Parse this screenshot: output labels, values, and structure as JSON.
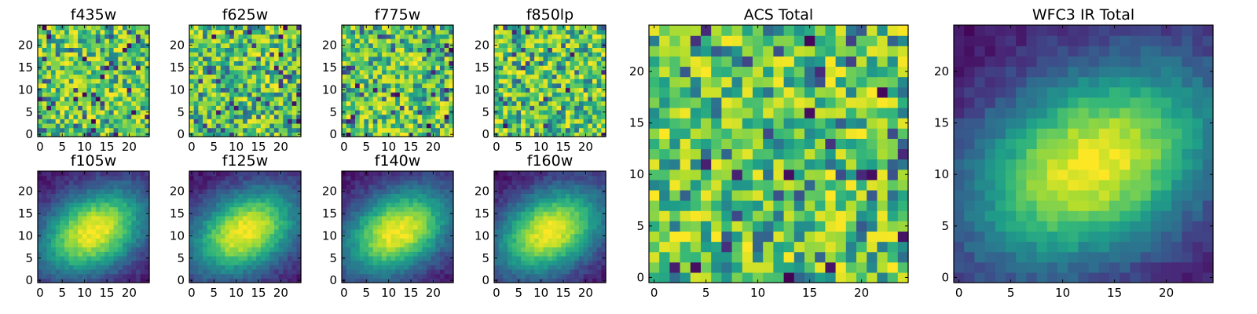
{
  "chart_data": [
    {
      "type": "heatmap",
      "title": "f435w",
      "x_ticks": [
        "0",
        "5",
        "10",
        "15",
        "20"
      ],
      "y_ticks": [
        "0",
        "5",
        "10",
        "15",
        "20"
      ],
      "grid_size": 25,
      "xlim": [
        0,
        24
      ],
      "ylim": [
        0,
        24
      ],
      "structure": "noise",
      "seed": 11
    },
    {
      "type": "heatmap",
      "title": "f625w",
      "x_ticks": [
        "0",
        "5",
        "10",
        "15",
        "20"
      ],
      "y_ticks": [
        "0",
        "5",
        "10",
        "15",
        "20"
      ],
      "grid_size": 25,
      "xlim": [
        0,
        24
      ],
      "ylim": [
        0,
        24
      ],
      "structure": "noise",
      "seed": 23
    },
    {
      "type": "heatmap",
      "title": "f775w",
      "x_ticks": [
        "0",
        "5",
        "10",
        "15",
        "20"
      ],
      "y_ticks": [
        "0",
        "5",
        "10",
        "15",
        "20"
      ],
      "grid_size": 25,
      "xlim": [
        0,
        24
      ],
      "ylim": [
        0,
        24
      ],
      "structure": "noise",
      "seed": 37
    },
    {
      "type": "heatmap",
      "title": "f850lp",
      "x_ticks": [
        "0",
        "5",
        "10",
        "15",
        "20"
      ],
      "y_ticks": [
        "0",
        "5",
        "10",
        "15",
        "20"
      ],
      "grid_size": 25,
      "xlim": [
        0,
        24
      ],
      "ylim": [
        0,
        24
      ],
      "structure": "noise",
      "seed": 41
    },
    {
      "type": "heatmap",
      "title": "f105w",
      "x_ticks": [
        "0",
        "5",
        "10",
        "15",
        "20"
      ],
      "y_ticks": [
        "0",
        "5",
        "10",
        "15",
        "20"
      ],
      "grid_size": 25,
      "xlim": [
        0,
        24
      ],
      "ylim": [
        0,
        24
      ],
      "structure": "blob",
      "blob_center": [
        12,
        11
      ],
      "seed": 53
    },
    {
      "type": "heatmap",
      "title": "f125w",
      "x_ticks": [
        "0",
        "5",
        "10",
        "15",
        "20"
      ],
      "y_ticks": [
        "0",
        "5",
        "10",
        "15",
        "20"
      ],
      "grid_size": 25,
      "xlim": [
        0,
        24
      ],
      "ylim": [
        0,
        24
      ],
      "structure": "blob",
      "blob_center": [
        12,
        11
      ],
      "seed": 61
    },
    {
      "type": "heatmap",
      "title": "f140w",
      "x_ticks": [
        "0",
        "5",
        "10",
        "15",
        "20"
      ],
      "y_ticks": [
        "0",
        "5",
        "10",
        "15",
        "20"
      ],
      "grid_size": 25,
      "xlim": [
        0,
        24
      ],
      "ylim": [
        0,
        24
      ],
      "structure": "blob",
      "blob_center": [
        12,
        11
      ],
      "seed": 73
    },
    {
      "type": "heatmap",
      "title": "f160w",
      "x_ticks": [
        "0",
        "5",
        "10",
        "15",
        "20"
      ],
      "y_ticks": [
        "0",
        "5",
        "10",
        "15",
        "20"
      ],
      "grid_size": 25,
      "xlim": [
        0,
        24
      ],
      "ylim": [
        0,
        24
      ],
      "structure": "blob",
      "blob_center": [
        12,
        11
      ],
      "seed": 89
    },
    {
      "type": "heatmap",
      "title": "ACS Total",
      "x_ticks": [
        "0",
        "5",
        "10",
        "15",
        "20"
      ],
      "y_ticks": [
        "0",
        "5",
        "10",
        "15",
        "20"
      ],
      "grid_size": 25,
      "xlim": [
        0,
        24
      ],
      "ylim": [
        0,
        24
      ],
      "structure": "noise",
      "seed": 97
    },
    {
      "type": "heatmap",
      "title": "WFC3 IR Total",
      "x_ticks": [
        "0",
        "5",
        "10",
        "15",
        "20"
      ],
      "y_ticks": [
        "0",
        "5",
        "10",
        "15",
        "20"
      ],
      "grid_size": 25,
      "xlim": [
        0,
        24
      ],
      "ylim": [
        0,
        24
      ],
      "structure": "blob",
      "blob_center": [
        13,
        11
      ],
      "seed": 101
    }
  ],
  "colormap": "viridis"
}
